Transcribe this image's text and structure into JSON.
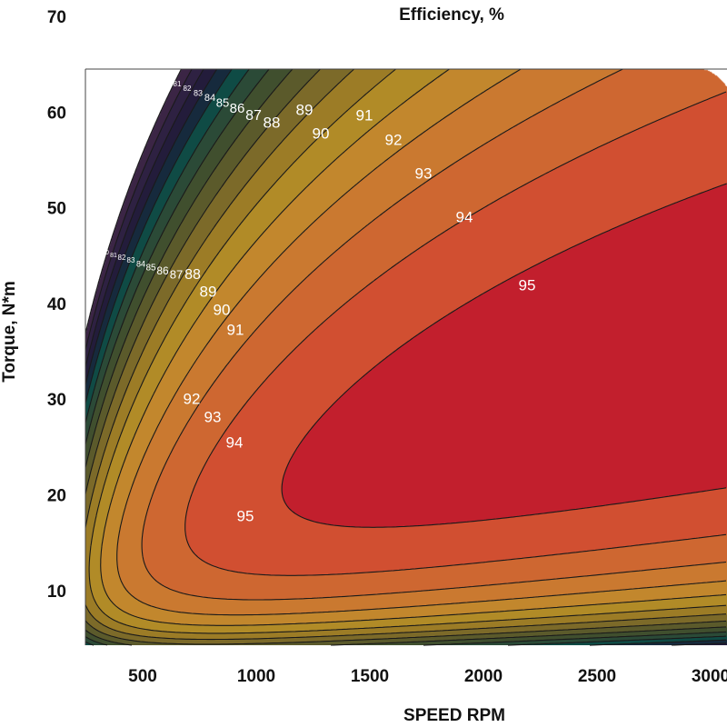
{
  "chart_data": {
    "type": "contour",
    "title": "Efficiency, %",
    "xlabel": "SPEED RPM",
    "ylabel": "Torque, N*m",
    "xlim": [
      256,
      3080
    ],
    "ylim": [
      4.3,
      64.5
    ],
    "xticks": [
      "500",
      "1000",
      "1500",
      "2000",
      "2500",
      "3000"
    ],
    "yticks": [
      "10",
      "20",
      "30",
      "40",
      "50",
      "60",
      "70"
    ],
    "levels": [
      80,
      81,
      82,
      83,
      84,
      85,
      86,
      87,
      88,
      89,
      90,
      91,
      92,
      93,
      94,
      95
    ],
    "max_efficiency_region": "95+ at roughly 900-3000 RPM, 12-52 N*m",
    "contour_labels_top": [
      "80",
      "81",
      "82",
      "83",
      "84",
      "85",
      "86",
      "87",
      "88",
      "89",
      "90",
      "91",
      "92",
      "93",
      "94",
      "95"
    ],
    "contour_labels_left": [
      "80",
      "81",
      "82",
      "83",
      "84",
      "85",
      "86",
      "87",
      "88",
      "89",
      "90",
      "91",
      "92",
      "93",
      "94",
      "95"
    ],
    "colors": [
      "#3b2545",
      "#2e2142",
      "#231c3b",
      "#162a3d",
      "#0f4b45",
      "#2b4a37",
      "#404f2e",
      "#5b5a2b",
      "#7c6a29",
      "#9c7c26",
      "#b18b27",
      "#c2872d",
      "#ca7930",
      "#ce6731",
      "#d14f31",
      "#c21f2d"
    ],
    "grid": false,
    "legend": "none"
  }
}
